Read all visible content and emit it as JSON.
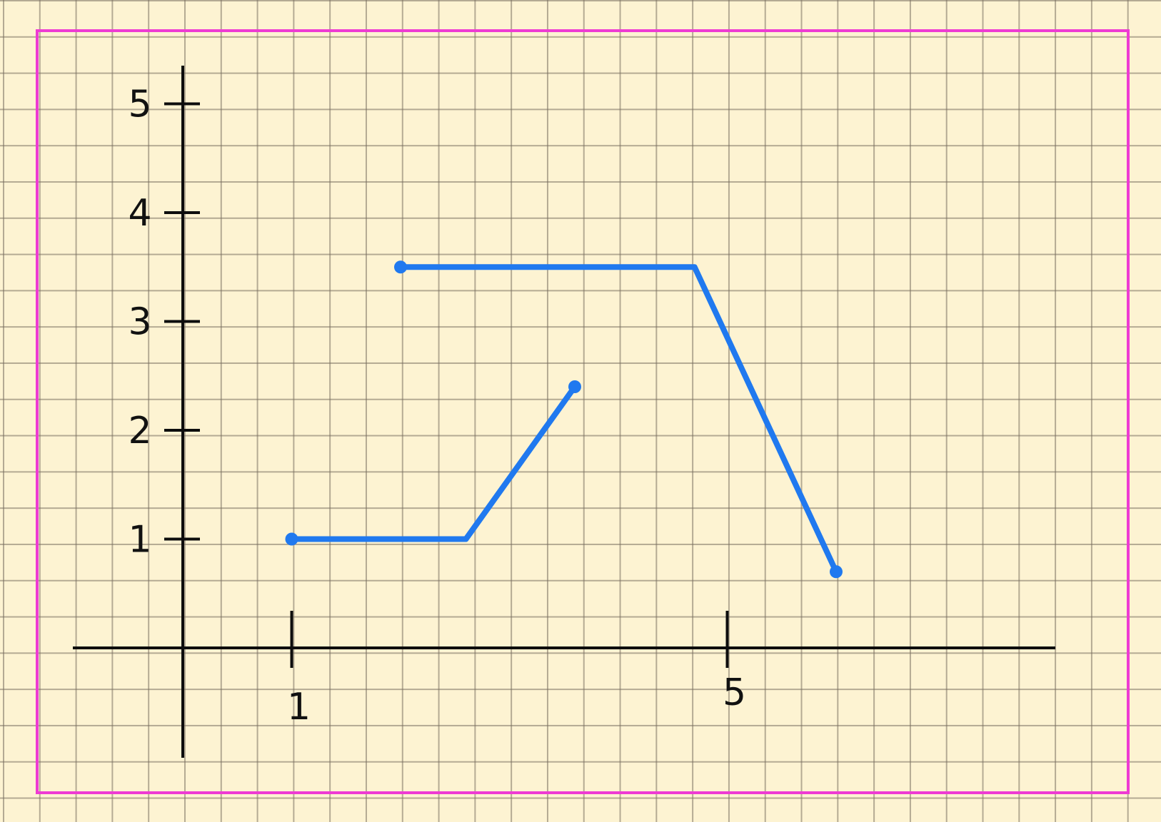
{
  "colors": {
    "frame": "#ee3bd3",
    "axis": "#0d0d0d",
    "series": "#2079ef",
    "paper": "#fdf3d2"
  },
  "chart_data": {
    "type": "line",
    "title": "",
    "xlabel": "",
    "ylabel": "",
    "xlim": [
      -1,
      8
    ],
    "ylim": [
      -1,
      5.3
    ],
    "x_ticks": [
      {
        "value": 1,
        "label": "1"
      },
      {
        "value": 5,
        "label": "5"
      }
    ],
    "y_ticks": [
      {
        "value": 1,
        "label": "1"
      },
      {
        "value": 2,
        "label": "2"
      },
      {
        "value": 3,
        "label": "3"
      },
      {
        "value": 4,
        "label": "4"
      },
      {
        "value": 5,
        "label": "5"
      }
    ],
    "grid": true,
    "series": [
      {
        "points": [
          {
            "x": 1,
            "y": 1
          },
          {
            "x": 2.6,
            "y": 1
          },
          {
            "x": 3.6,
            "y": 2.4
          }
        ]
      },
      {
        "points": [
          {
            "x": 2,
            "y": 3.5
          },
          {
            "x": 4.7,
            "y": 3.5
          },
          {
            "x": 6,
            "y": 0.7
          }
        ]
      }
    ]
  }
}
